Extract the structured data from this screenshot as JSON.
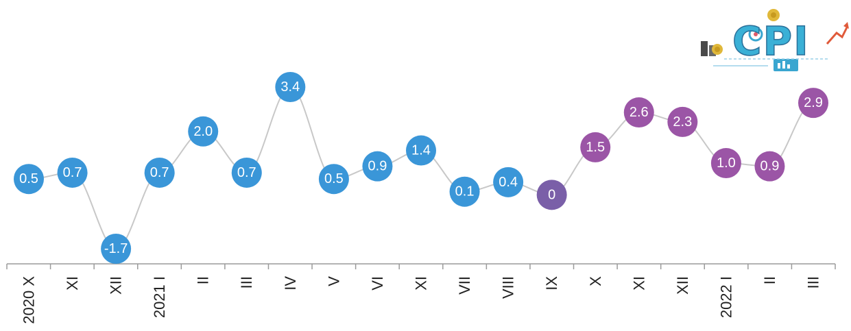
{
  "chart_data": {
    "type": "line",
    "categories": [
      "2020 X",
      "XI",
      "XII",
      "2021 I",
      "II",
      "III",
      "IV",
      "V",
      "VI",
      "XI",
      "VII",
      "VIII",
      "IX",
      "X",
      "XI",
      "XII",
      "2022 I",
      "II",
      "III"
    ],
    "values": [
      0.5,
      0.7,
      -1.7,
      0.7,
      2.0,
      0.7,
      3.4,
      0.5,
      0.9,
      1.4,
      0.1,
      0.4,
      0,
      1.5,
      2.6,
      2.3,
      1.0,
      0.9,
      2.9
    ],
    "value_labels": [
      "0.5",
      "0.7",
      "-1.7",
      "0.7",
      "2.0",
      "0.7",
      "3.4",
      "0.5",
      "0.9",
      "1.4",
      "0.1",
      "0.4",
      "0",
      "1.5",
      "2.6",
      "2.3",
      "1.0",
      "0.9",
      "2.9"
    ],
    "point_colors": [
      "#3a96d8",
      "#3a96d8",
      "#3a96d8",
      "#3a96d8",
      "#3a96d8",
      "#3a96d8",
      "#3a96d8",
      "#3a96d8",
      "#3a96d8",
      "#3a96d8",
      "#3a96d8",
      "#3a96d8",
      "#7a5fa8",
      "#9b55a6",
      "#9b55a6",
      "#9b55a6",
      "#9b55a6",
      "#9b55a6",
      "#9b55a6"
    ],
    "line_color": "#c8c8c8",
    "axis_color": "#9a9a9a",
    "title": "",
    "xlabel": "",
    "ylabel": "",
    "ylim": [
      -2,
      4
    ],
    "grid": false,
    "legend": "none"
  },
  "logo": {
    "text": "CPI",
    "icon": "cpi-logo"
  }
}
